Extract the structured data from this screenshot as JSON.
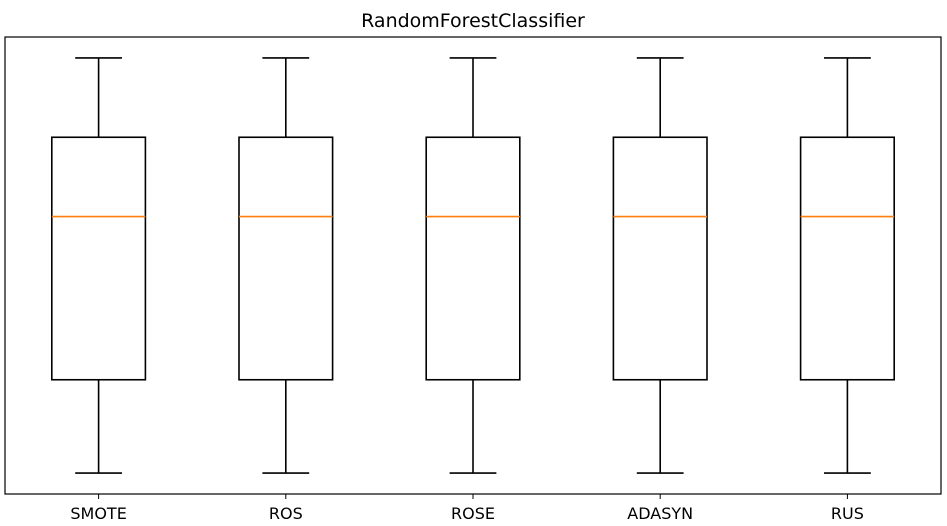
{
  "chart_data": {
    "type": "box",
    "title": "RandomForestClassifier",
    "xlabel": "",
    "ylabel": "",
    "categories": [
      "SMOTE",
      "ROS",
      "ROSE",
      "ADASYN",
      "RUS"
    ],
    "series": [
      {
        "category": "SMOTE",
        "whisker_low": 0.0,
        "q1": 0.2,
        "median": 0.55,
        "q3": 0.72,
        "whisker_high": 0.89
      },
      {
        "category": "ROS",
        "whisker_low": 0.0,
        "q1": 0.2,
        "median": 0.55,
        "q3": 0.72,
        "whisker_high": 0.89
      },
      {
        "category": "ROSE",
        "whisker_low": 0.0,
        "q1": 0.2,
        "median": 0.55,
        "q3": 0.72,
        "whisker_high": 0.89
      },
      {
        "category": "ADASYN",
        "whisker_low": 0.0,
        "q1": 0.2,
        "median": 0.55,
        "q3": 0.72,
        "whisker_high": 0.89
      },
      {
        "category": "RUS",
        "whisker_low": 0.0,
        "q1": 0.2,
        "median": 0.55,
        "q3": 0.72,
        "whisker_high": 0.89
      }
    ],
    "ylim": [
      -0.045,
      0.935
    ],
    "yticks_visible": false,
    "grid": false,
    "colors": {
      "box": "#000000",
      "median": "#ff7f0e",
      "frame": "#000000"
    }
  }
}
